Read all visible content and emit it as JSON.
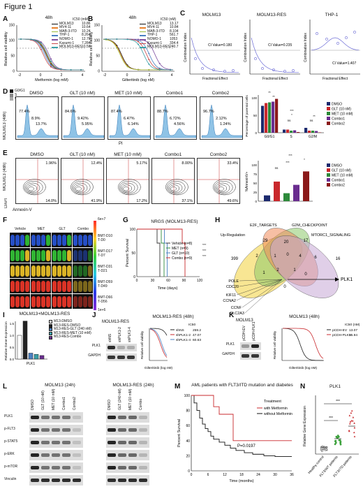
{
  "figure": {
    "title": "Figure 1",
    "panel_labels": [
      "A",
      "B",
      "C",
      "D",
      "E",
      "F",
      "G",
      "H",
      "I",
      "J",
      "K",
      "L",
      "M",
      "N"
    ]
  },
  "colors": {
    "molm13": "#111111",
    "mv411": "#e8812a",
    "mab": "#9bbb3b",
    "thp1": "#4a7fc1",
    "nomo1": "#7f4fa1",
    "kasumi": "#c94a4a",
    "molm13res": "#3aa0a8",
    "dmso": "#1c2a6e",
    "glt": "#c9282c",
    "met": "#2d8a3a",
    "combo1": "#6a2d8f",
    "combo2": "#8b1a1a",
    "vehicle": "#333333",
    "met_g": "#2d8a3a",
    "glt_g": "#4a7fc1",
    "combo_g": "#c9282c",
    "venn_a": "#f2d23a",
    "venn_b": "#8cc96a",
    "venn_c": "#f08a5a",
    "venn_d": "#c7a8d6"
  },
  "panelA": {
    "header": "48h",
    "xlabel": "Metformin (log mM)",
    "ylabel": "Relative cell viability",
    "ic50_header": "IC50 (mM)",
    "xticks": [
      "-2",
      "0",
      "2",
      "4"
    ],
    "yticks": [
      "0",
      "50",
      "100",
      "150"
    ],
    "legend": [
      {
        "name": "MOLM13",
        "ic50": "10.86"
      },
      {
        "name": "MV4-11",
        "ic50": "10.64"
      },
      {
        "name": "MAB-3-ITD",
        "ic50": "10.24"
      },
      {
        "name": "THP-1",
        "ic50": "8.264"
      },
      {
        "name": "NOMO-1",
        "ic50": "12.76"
      },
      {
        "name": "Kasumi-1",
        "ic50": "7.284"
      },
      {
        "name": "MOLM13-RES",
        "ic50": "10.50"
      }
    ]
  },
  "panelB": {
    "header": "48h",
    "xlabel": "Gilteritinib (log nM)",
    "ylabel": "Relative cell viability",
    "ic50_header": "IC50 (nM)",
    "xticks": [
      "-2",
      "0",
      "2",
      "4"
    ],
    "yticks": [
      "0",
      "50",
      "100",
      "150"
    ],
    "legend": [
      {
        "name": "MOLM13",
        "ic50": "13.17"
      },
      {
        "name": "MV4-11",
        "ic50": "10.84"
      },
      {
        "name": "MAB-3-ITD",
        "ic50": "8.104"
      },
      {
        "name": "THP-1",
        "ic50": "561.7"
      },
      {
        "name": "NOMO-1",
        "ic50": "1053"
      },
      {
        "name": "Kasumi-1",
        "ic50": "334.4"
      },
      {
        "name": "MOLM13-RES",
        "ic50": "240.7"
      }
    ]
  },
  "panelC": {
    "ylabel": "Combination Index",
    "xlabel": "Fractional Effect",
    "plots": [
      {
        "title": "MOLM13",
        "ci": "CI Value=0.180"
      },
      {
        "title": "MOLM13-RES",
        "ci": "CI Value=0.235"
      },
      {
        "title": "THP-1",
        "ci": "CI Value=1.407"
      }
    ]
  },
  "panelD": {
    "ylabel": "MOLM13 (48h)",
    "xlabel": "PI",
    "legend": [
      "G0/G1",
      "S",
      "G2/M"
    ],
    "plots": [
      {
        "title": "DMSO",
        "a": "77.4%",
        "b": "8.9%",
        "c": "13.7%"
      },
      {
        "title": "GLT (10 nM)",
        "a": "84.6%",
        "b": "9.42%",
        "c": "5.95%"
      },
      {
        "title": "MET (10 mM)",
        "a": "87.4%",
        "b": "6.47%",
        "c": "6.14%"
      },
      {
        "title": "Combo1",
        "a": "88.7%",
        "b": "6.72%",
        "c": "4.56%"
      },
      {
        "title": "Combo2",
        "a": "96.7%",
        "b": "2.12%",
        "c": "1.24%"
      }
    ],
    "bar_ylabel": "Percentage of parental cells",
    "bar_groups": [
      "G0/G1",
      "S",
      "G2/M"
    ],
    "bar_legend": [
      "DMSO",
      "GLT (10 nM)",
      "MET (10 mM)",
      "Combo1",
      "Combo2"
    ],
    "sig": [
      "**",
      "**",
      "*",
      "ns",
      "***",
      "ns",
      "**"
    ]
  },
  "panelE": {
    "ylabel": "MOLM13 (48h)",
    "y2": "DAPI",
    "xlabel": "Annexin-V",
    "plots": [
      {
        "title": "DMSO",
        "tr": "1.96%",
        "br": "14.0%"
      },
      {
        "title": "GLT (10 nM)",
        "tr": "12.4%",
        "br": "41.9%"
      },
      {
        "title": "MET (10 mM)",
        "tr": "5.17%",
        "br": "17.2%"
      },
      {
        "title": "Combo1",
        "tr": "8.00%",
        "br": "37.1%"
      },
      {
        "title": "Combo2",
        "tr": "33.4%",
        "br": "49.6%"
      }
    ],
    "bar_ylabel": "%AnnexinV+",
    "bar_legend": [
      "DMSO",
      "GLT (10 nM)",
      "MET (10 mM)",
      "Combo1",
      "Combo2"
    ],
    "sig": [
      "***",
      "ns",
      "***",
      "*"
    ]
  },
  "panelF": {
    "cols": [
      "Vehicle",
      "MET",
      "GLT",
      "Combo"
    ],
    "rows": [
      "BMT-D10\nT-D0",
      "BMT-D17\nT-D7",
      "BMT-D31\nT-D21",
      "BMT-D59\nT-D49",
      "BMT-D66\nT-D56"
    ],
    "scale_top": "6e+7",
    "scale_bot": "1e+6"
  },
  "panelG": {
    "title": "NRGS (MOLM13-RES)",
    "ylabel": "Percent Survival",
    "xlabel": "Time (days)",
    "xticks": [
      "0",
      "30",
      "60",
      "90",
      "120"
    ],
    "yticks": [
      "0",
      "50",
      "100"
    ],
    "legend": [
      "Vehicle (n=8)",
      "MET (n=9)",
      "GLT (n=10)",
      "Combo (n=9)"
    ],
    "sig": [
      "***",
      "***",
      "***"
    ]
  },
  "panelH": {
    "sets": [
      "E2F_TARGETS",
      "G2M_CHECKPOINT",
      "Up-Regulation",
      "MTORC1_SIGNALING"
    ],
    "numbers": [
      "399",
      "29",
      "20",
      "17",
      "16",
      "2",
      "1",
      "0",
      "4",
      "6",
      "1",
      "2",
      "1",
      "0",
      "0"
    ],
    "genes": [
      "POLE",
      "CDC20",
      "KIF11",
      "CCNA2",
      "CCNF",
      "SLC2A3"
    ],
    "target": "PLK1"
  },
  "panelI": {
    "title": "MOLM13+MOLM13-RES",
    "ylabel": "Relative Gene Expression",
    "xlabel": "PLK1",
    "yticks": [
      "0.0",
      "0.5",
      "1.0",
      "1.5"
    ],
    "legend": [
      "M13-DMSO",
      "M13-RES-DMSO",
      "M13-RES-GLT (240 nM)",
      "M13-RES-MET (10 mM)",
      "M13-RES-Combo"
    ]
  },
  "panelJ": {
    "blot_title": "MOLM13-RES",
    "lanes": [
      "shNS",
      "shPLK1-2",
      "shPLK1-4"
    ],
    "bands": [
      "PLK1",
      "GAPDH"
    ],
    "curve_title": "MOLM13-RES (48h)",
    "ic50_header": "IC50",
    "legend": [
      {
        "name": "shNS",
        "ic50": "259.2"
      },
      {
        "name": "shPLK1-2",
        "ic50": "47.07"
      },
      {
        "name": "shPLK1-4",
        "ic50": "60.63"
      }
    ],
    "xlabel": "Gilteritinib (log nM)",
    "ylabel": "Relative cell viability"
  },
  "panelK": {
    "blot_title": "MOLM13",
    "lanes": [
      "pCDH-EV",
      "pCDH-PLK1"
    ],
    "bands": [
      "PLK1",
      "GAPDH"
    ],
    "curve_title": "MOLM13 (48h)",
    "ic50_header": "IC50 (nM)",
    "legend": [
      {
        "name": "pCDH-EV",
        "ic50": "13.07"
      },
      {
        "name": "pCDH-PLK1",
        "ic50": "95.94"
      }
    ],
    "xlabel": "Gilteritinib (log nM)",
    "ylabel": "Relative cell viability"
  },
  "panelL": {
    "left_title": "MOLM13 (24h)",
    "right_title": "MOLM13-RES (24h)",
    "left_lanes": [
      "DMSO",
      "GLT (10 nM)",
      "MET (10 mM)",
      "Combo1",
      "Combo2"
    ],
    "right_lanes": [
      "DMSO",
      "GLT (240 nM)",
      "MET (10 mM)",
      "Combo"
    ],
    "bands": [
      "PLK1",
      "p-FLT3",
      "p-STAT5",
      "p-ERK",
      "p-mTOR",
      "Vinculin"
    ]
  },
  "panelM": {
    "title": "AML patients with FLT3/ITD mutation and diabetes",
    "legend_title": "Treatment",
    "legend": [
      "with Metformin",
      "without Metformin"
    ],
    "pvalue": "P=0.0197",
    "ylabel": "Percent Survival",
    "xlabel": "Time (months)",
    "xticks": [
      "0",
      "6",
      "12",
      "18",
      "24",
      "30",
      "36"
    ],
    "yticks": [
      "0",
      "20",
      "40",
      "60",
      "80",
      "100"
    ]
  },
  "panelN": {
    "title": "PLK1",
    "ylabel": "Relative Gene Expression",
    "groups": [
      "Healthy control",
      "FLT3/WT patients",
      "FLT3/ITD patients"
    ],
    "sig": [
      "***",
      "***"
    ]
  }
}
